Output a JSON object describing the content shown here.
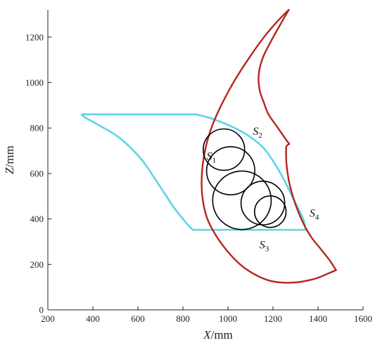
{
  "chart_data": {
    "type": "line",
    "xlabel": {
      "var": "X",
      "unit": "/mm"
    },
    "ylabel": {
      "var": "Z",
      "unit": "/mm"
    },
    "xlim": [
      200,
      1600
    ],
    "ylim": [
      0,
      1320
    ],
    "xticks": [
      "200",
      "400",
      "600",
      "800",
      "1000",
      "1200",
      "1400",
      "1600"
    ],
    "yticks": [
      "0",
      "200",
      "400",
      "600",
      "800",
      "1000",
      "1200"
    ],
    "colors": {
      "cyan": "#5fd3ea",
      "red": "#b5261e",
      "circle": "#000000"
    },
    "cyan_shape": {
      "top_y": 860,
      "top_x": [
        350,
        860
      ],
      "bottom_y": 352,
      "bottom_x": [
        845,
        1345
      ],
      "left_curve": [
        [
          350,
          860
        ],
        [
          360,
          850
        ],
        [
          395,
          830
        ],
        [
          440,
          805
        ],
        [
          500,
          770
        ],
        [
          550,
          730
        ],
        [
          600,
          680
        ],
        [
          640,
          630
        ],
        [
          680,
          570
        ],
        [
          720,
          510
        ],
        [
          760,
          450
        ],
        [
          800,
          400
        ],
        [
          830,
          365
        ],
        [
          845,
          352
        ]
      ],
      "right_curve": [
        [
          860,
          860
        ],
        [
          900,
          850
        ],
        [
          960,
          830
        ],
        [
          1030,
          800
        ],
        [
          1100,
          760
        ],
        [
          1160,
          710
        ],
        [
          1210,
          640
        ],
        [
          1250,
          570
        ],
        [
          1285,
          500
        ],
        [
          1310,
          450
        ],
        [
          1330,
          410
        ],
        [
          1340,
          380
        ],
        [
          1345,
          352
        ]
      ]
    },
    "red_shape": {
      "outer_left": [
        [
          1270,
          1320
        ],
        [
          1220,
          1270
        ],
        [
          1160,
          1200
        ],
        [
          1095,
          1110
        ],
        [
          1030,
          1010
        ],
        [
          975,
          910
        ],
        [
          930,
          810
        ],
        [
          900,
          710
        ],
        [
          885,
          610
        ],
        [
          885,
          510
        ],
        [
          905,
          410
        ],
        [
          945,
          330
        ],
        [
          1000,
          255
        ],
        [
          1060,
          195
        ],
        [
          1130,
          150
        ],
        [
          1200,
          125
        ],
        [
          1290,
          120
        ],
        [
          1380,
          135
        ],
        [
          1445,
          160
        ],
        [
          1480,
          175
        ]
      ],
      "lower_right": [
        [
          1480,
          175
        ],
        [
          1450,
          220
        ],
        [
          1410,
          270
        ],
        [
          1370,
          320
        ],
        [
          1335,
          380
        ],
        [
          1305,
          450
        ],
        [
          1285,
          510
        ],
        [
          1270,
          570
        ],
        [
          1260,
          640
        ],
        [
          1258,
          700
        ],
        [
          1260,
          720
        ],
        [
          1272,
          730
        ]
      ],
      "inner": [
        [
          1272,
          730
        ],
        [
          1250,
          760
        ],
        [
          1215,
          810
        ],
        [
          1180,
          860
        ],
        [
          1160,
          910
        ],
        [
          1140,
          970
        ],
        [
          1137,
          1040
        ],
        [
          1155,
          1110
        ],
        [
          1190,
          1180
        ],
        [
          1235,
          1260
        ],
        [
          1270,
          1320
        ]
      ]
    },
    "circles": [
      {
        "cx": 982,
        "cy": 705,
        "r": 92
      },
      {
        "cx": 1012,
        "cy": 612,
        "r": 107
      },
      {
        "cx": 1062,
        "cy": 482,
        "r": 130
      },
      {
        "cx": 1155,
        "cy": 470,
        "r": 97
      },
      {
        "cx": 1188,
        "cy": 432,
        "r": 70
      }
    ],
    "labels": [
      {
        "base": "S",
        "sub": "1",
        "x": 905,
        "y": 660
      },
      {
        "base": "S",
        "sub": "2",
        "x": 1110,
        "y": 770
      },
      {
        "base": "S",
        "sub": "3",
        "x": 1140,
        "y": 270
      },
      {
        "base": "S",
        "sub": "4",
        "x": 1362,
        "y": 410
      }
    ]
  }
}
